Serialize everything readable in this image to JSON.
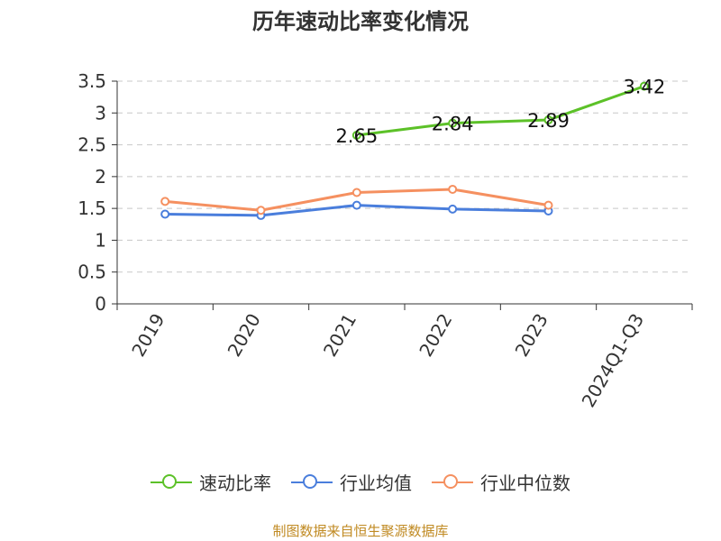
{
  "chart_data": {
    "type": "line",
    "title": "历年速动比率变化情况",
    "categories": [
      "2019",
      "2020",
      "2021",
      "2022",
      "2023",
      "2024Q1-Q3"
    ],
    "ylim": [
      0,
      3.5
    ],
    "yticks": [
      "0",
      "0.5",
      "1",
      "1.5",
      "2",
      "2.5",
      "3",
      "3.5"
    ],
    "grid": true,
    "legend_position": "bottom",
    "series": [
      {
        "name": "速动比率",
        "color": "#5cc128",
        "values": [
          null,
          null,
          2.65,
          2.84,
          2.89,
          3.42
        ],
        "labels": [
          null,
          null,
          "2.65",
          "2.84",
          "2.89",
          "3.42"
        ]
      },
      {
        "name": "行业均值",
        "color": "#4a7edc",
        "values": [
          1.41,
          1.39,
          1.55,
          1.49,
          1.46,
          null
        ]
      },
      {
        "name": "行业中位数",
        "color": "#f59060",
        "values": [
          1.61,
          1.47,
          1.75,
          1.8,
          1.55,
          null
        ]
      }
    ]
  },
  "footer": {
    "source": "制图数据来自恒生聚源数据库"
  }
}
